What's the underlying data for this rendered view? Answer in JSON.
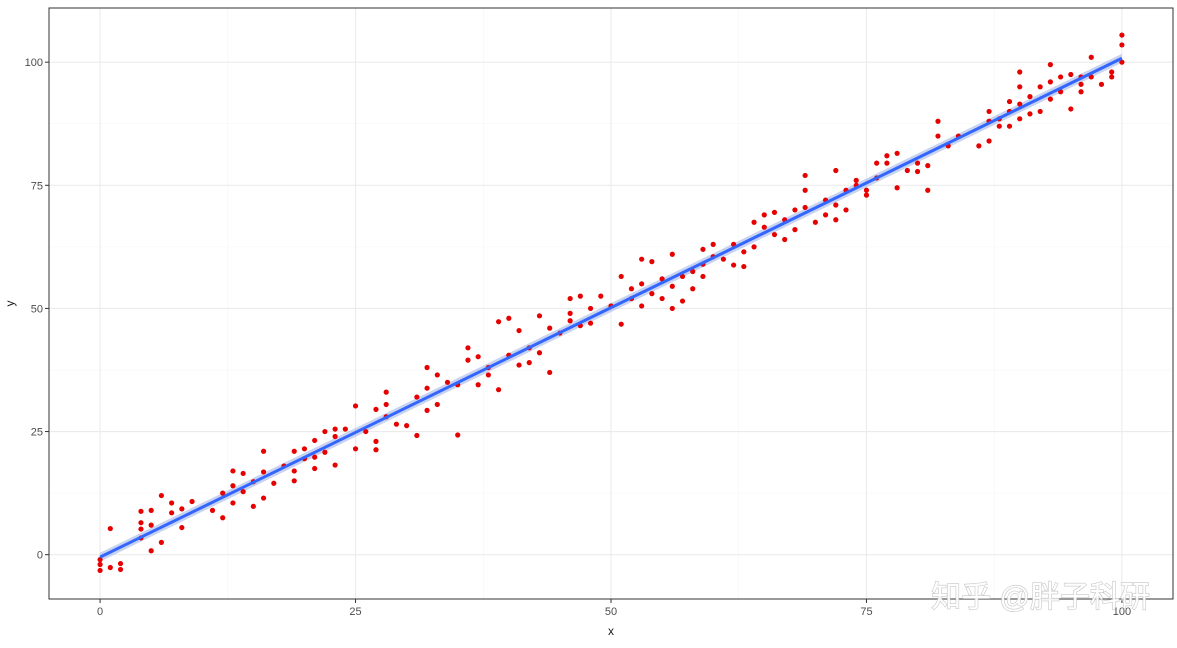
{
  "chart_data": {
    "type": "scatter",
    "title": "",
    "xlabel": "x",
    "ylabel": "y",
    "xlim": [
      -5,
      105
    ],
    "ylim": [
      -9,
      111
    ],
    "xticks": [
      0,
      25,
      50,
      75,
      100
    ],
    "yticks": [
      0,
      25,
      50,
      75,
      100
    ],
    "xtick_labels": [
      "0",
      "25",
      "50",
      "75",
      "100"
    ],
    "ytick_labels": [
      "0",
      "25",
      "50",
      "75",
      "100"
    ],
    "grid": true,
    "legend": "none",
    "colors": {
      "points": "#e60000",
      "fit_line": "#3366ff",
      "ribbon": "#a3b6e8",
      "grid_major": "#ebebeb",
      "grid_minor": "#f4f4f4",
      "panel_border": "#333333"
    },
    "fit_line": {
      "method": "lm",
      "x": [
        0,
        100
      ],
      "y": [
        -0.5,
        100.8
      ]
    },
    "points": [
      {
        "x": 0,
        "y": -3.2
      },
      {
        "x": 0,
        "y": -2.0
      },
      {
        "x": 0,
        "y": -1.0
      },
      {
        "x": 1,
        "y": 5.3
      },
      {
        "x": 1,
        "y": -2.6
      },
      {
        "x": 2,
        "y": -1.8
      },
      {
        "x": 2,
        "y": -3.0
      },
      {
        "x": 4,
        "y": 8.8
      },
      {
        "x": 4,
        "y": 6.5
      },
      {
        "x": 4,
        "y": 3.4
      },
      {
        "x": 4,
        "y": 5.2
      },
      {
        "x": 5,
        "y": 9.0
      },
      {
        "x": 5,
        "y": 6.0
      },
      {
        "x": 5,
        "y": 0.8
      },
      {
        "x": 6,
        "y": 12.0
      },
      {
        "x": 6,
        "y": 2.5
      },
      {
        "x": 7,
        "y": 10.5
      },
      {
        "x": 7,
        "y": 8.5
      },
      {
        "x": 8,
        "y": 9.3
      },
      {
        "x": 8,
        "y": 5.5
      },
      {
        "x": 9,
        "y": 10.8
      },
      {
        "x": 11,
        "y": 9.0
      },
      {
        "x": 12,
        "y": 12.5
      },
      {
        "x": 12,
        "y": 7.5
      },
      {
        "x": 13,
        "y": 17.0
      },
      {
        "x": 13,
        "y": 14.0
      },
      {
        "x": 13,
        "y": 10.5
      },
      {
        "x": 14,
        "y": 16.5
      },
      {
        "x": 14,
        "y": 12.8
      },
      {
        "x": 15,
        "y": 14.8
      },
      {
        "x": 15,
        "y": 9.8
      },
      {
        "x": 16,
        "y": 21.0
      },
      {
        "x": 16,
        "y": 16.8
      },
      {
        "x": 16,
        "y": 11.5
      },
      {
        "x": 17,
        "y": 14.5
      },
      {
        "x": 18,
        "y": 18.0
      },
      {
        "x": 19,
        "y": 21.0
      },
      {
        "x": 19,
        "y": 17.0
      },
      {
        "x": 19,
        "y": 15.0
      },
      {
        "x": 20,
        "y": 21.5
      },
      {
        "x": 20,
        "y": 19.5
      },
      {
        "x": 21,
        "y": 23.2
      },
      {
        "x": 21,
        "y": 19.8
      },
      {
        "x": 21,
        "y": 17.5
      },
      {
        "x": 22,
        "y": 25.0
      },
      {
        "x": 22,
        "y": 20.8
      },
      {
        "x": 23,
        "y": 25.5
      },
      {
        "x": 23,
        "y": 24.0
      },
      {
        "x": 23,
        "y": 18.2
      },
      {
        "x": 24,
        "y": 25.5
      },
      {
        "x": 25,
        "y": 30.2
      },
      {
        "x": 25,
        "y": 21.5
      },
      {
        "x": 26,
        "y": 25.0
      },
      {
        "x": 27,
        "y": 29.5
      },
      {
        "x": 27,
        "y": 23.0
      },
      {
        "x": 27,
        "y": 21.3
      },
      {
        "x": 28,
        "y": 33.0
      },
      {
        "x": 28,
        "y": 30.5
      },
      {
        "x": 28,
        "y": 28.0
      },
      {
        "x": 29,
        "y": 26.5
      },
      {
        "x": 30,
        "y": 26.2
      },
      {
        "x": 31,
        "y": 32.0
      },
      {
        "x": 31,
        "y": 24.2
      },
      {
        "x": 32,
        "y": 38.0
      },
      {
        "x": 32,
        "y": 33.8
      },
      {
        "x": 32,
        "y": 29.3
      },
      {
        "x": 33,
        "y": 36.5
      },
      {
        "x": 33,
        "y": 30.5
      },
      {
        "x": 34,
        "y": 35.0
      },
      {
        "x": 35,
        "y": 34.5
      },
      {
        "x": 35,
        "y": 24.3
      },
      {
        "x": 36,
        "y": 42.0
      },
      {
        "x": 36,
        "y": 39.5
      },
      {
        "x": 37,
        "y": 40.2
      },
      {
        "x": 37,
        "y": 34.5
      },
      {
        "x": 38,
        "y": 38.0
      },
      {
        "x": 38,
        "y": 36.5
      },
      {
        "x": 39,
        "y": 47.3
      },
      {
        "x": 39,
        "y": 33.5
      },
      {
        "x": 40,
        "y": 48.0
      },
      {
        "x": 40,
        "y": 40.5
      },
      {
        "x": 41,
        "y": 45.5
      },
      {
        "x": 41,
        "y": 38.5
      },
      {
        "x": 42,
        "y": 42.0
      },
      {
        "x": 42,
        "y": 39.0
      },
      {
        "x": 43,
        "y": 48.5
      },
      {
        "x": 43,
        "y": 41.0
      },
      {
        "x": 44,
        "y": 46.0
      },
      {
        "x": 44,
        "y": 37.0
      },
      {
        "x": 45,
        "y": 45.0
      },
      {
        "x": 46,
        "y": 52.0
      },
      {
        "x": 46,
        "y": 49.0
      },
      {
        "x": 46,
        "y": 47.5
      },
      {
        "x": 47,
        "y": 52.5
      },
      {
        "x": 47,
        "y": 46.5
      },
      {
        "x": 48,
        "y": 50.0
      },
      {
        "x": 48,
        "y": 47.0
      },
      {
        "x": 49,
        "y": 52.5
      },
      {
        "x": 50,
        "y": 50.5
      },
      {
        "x": 51,
        "y": 56.5
      },
      {
        "x": 51,
        "y": 46.8
      },
      {
        "x": 52,
        "y": 54.0
      },
      {
        "x": 52,
        "y": 52.0
      },
      {
        "x": 53,
        "y": 60.0
      },
      {
        "x": 53,
        "y": 55.0
      },
      {
        "x": 53,
        "y": 50.5
      },
      {
        "x": 54,
        "y": 59.5
      },
      {
        "x": 54,
        "y": 53.0
      },
      {
        "x": 55,
        "y": 56.0
      },
      {
        "x": 55,
        "y": 52.0
      },
      {
        "x": 56,
        "y": 61.0
      },
      {
        "x": 56,
        "y": 54.5
      },
      {
        "x": 56,
        "y": 50.0
      },
      {
        "x": 57,
        "y": 56.5
      },
      {
        "x": 57,
        "y": 51.5
      },
      {
        "x": 58,
        "y": 57.5
      },
      {
        "x": 58,
        "y": 54.0
      },
      {
        "x": 59,
        "y": 62.0
      },
      {
        "x": 59,
        "y": 59.0
      },
      {
        "x": 59,
        "y": 56.5
      },
      {
        "x": 60,
        "y": 63.0
      },
      {
        "x": 60,
        "y": 60.5
      },
      {
        "x": 61,
        "y": 60.0
      },
      {
        "x": 62,
        "y": 63.0
      },
      {
        "x": 62,
        "y": 58.8
      },
      {
        "x": 63,
        "y": 61.5
      },
      {
        "x": 63,
        "y": 58.5
      },
      {
        "x": 64,
        "y": 67.5
      },
      {
        "x": 64,
        "y": 62.5
      },
      {
        "x": 65,
        "y": 69.0
      },
      {
        "x": 65,
        "y": 66.5
      },
      {
        "x": 66,
        "y": 69.5
      },
      {
        "x": 66,
        "y": 65.0
      },
      {
        "x": 67,
        "y": 68.0
      },
      {
        "x": 67,
        "y": 64.0
      },
      {
        "x": 68,
        "y": 70.0
      },
      {
        "x": 68,
        "y": 66.0
      },
      {
        "x": 69,
        "y": 77.0
      },
      {
        "x": 69,
        "y": 74.0
      },
      {
        "x": 69,
        "y": 70.5
      },
      {
        "x": 70,
        "y": 67.5
      },
      {
        "x": 71,
        "y": 72.0
      },
      {
        "x": 71,
        "y": 69.0
      },
      {
        "x": 72,
        "y": 78.0
      },
      {
        "x": 72,
        "y": 71.0
      },
      {
        "x": 72,
        "y": 68.0
      },
      {
        "x": 73,
        "y": 74.0
      },
      {
        "x": 73,
        "y": 70.0
      },
      {
        "x": 74,
        "y": 76.0
      },
      {
        "x": 74,
        "y": 75.0
      },
      {
        "x": 75,
        "y": 74.0
      },
      {
        "x": 75,
        "y": 73.0
      },
      {
        "x": 76,
        "y": 79.5
      },
      {
        "x": 76,
        "y": 76.5
      },
      {
        "x": 77,
        "y": 81.0
      },
      {
        "x": 77,
        "y": 79.5
      },
      {
        "x": 78,
        "y": 81.5
      },
      {
        "x": 78,
        "y": 74.5
      },
      {
        "x": 79,
        "y": 78.0
      },
      {
        "x": 80,
        "y": 79.5
      },
      {
        "x": 80,
        "y": 77.8
      },
      {
        "x": 81,
        "y": 74.0
      },
      {
        "x": 81,
        "y": 79.0
      },
      {
        "x": 82,
        "y": 88.0
      },
      {
        "x": 82,
        "y": 85.0
      },
      {
        "x": 83,
        "y": 83.0
      },
      {
        "x": 84,
        "y": 85.0
      },
      {
        "x": 86,
        "y": 83.0
      },
      {
        "x": 87,
        "y": 90.0
      },
      {
        "x": 87,
        "y": 88.0
      },
      {
        "x": 87,
        "y": 84.0
      },
      {
        "x": 88,
        "y": 88.5
      },
      {
        "x": 88,
        "y": 87.0
      },
      {
        "x": 89,
        "y": 92.0
      },
      {
        "x": 89,
        "y": 90.0
      },
      {
        "x": 89,
        "y": 87.0
      },
      {
        "x": 90,
        "y": 98.0
      },
      {
        "x": 90,
        "y": 95.0
      },
      {
        "x": 90,
        "y": 91.5
      },
      {
        "x": 90,
        "y": 88.5
      },
      {
        "x": 91,
        "y": 93.0
      },
      {
        "x": 91,
        "y": 89.5
      },
      {
        "x": 92,
        "y": 95.0
      },
      {
        "x": 92,
        "y": 90.0
      },
      {
        "x": 93,
        "y": 99.5
      },
      {
        "x": 93,
        "y": 96.0
      },
      {
        "x": 93,
        "y": 92.5
      },
      {
        "x": 94,
        "y": 97.0
      },
      {
        "x": 94,
        "y": 94.0
      },
      {
        "x": 95,
        "y": 97.5
      },
      {
        "x": 95,
        "y": 90.5
      },
      {
        "x": 96,
        "y": 97.0
      },
      {
        "x": 96,
        "y": 95.5
      },
      {
        "x": 96,
        "y": 94.0
      },
      {
        "x": 97,
        "y": 101.0
      },
      {
        "x": 97,
        "y": 97.0
      },
      {
        "x": 98,
        "y": 95.5
      },
      {
        "x": 99,
        "y": 98.0
      },
      {
        "x": 99,
        "y": 97.0
      },
      {
        "x": 100,
        "y": 105.5
      },
      {
        "x": 100,
        "y": 103.5
      },
      {
        "x": 100,
        "y": 100.0
      }
    ]
  },
  "watermark": {
    "text": "知乎 @胖子科研"
  }
}
